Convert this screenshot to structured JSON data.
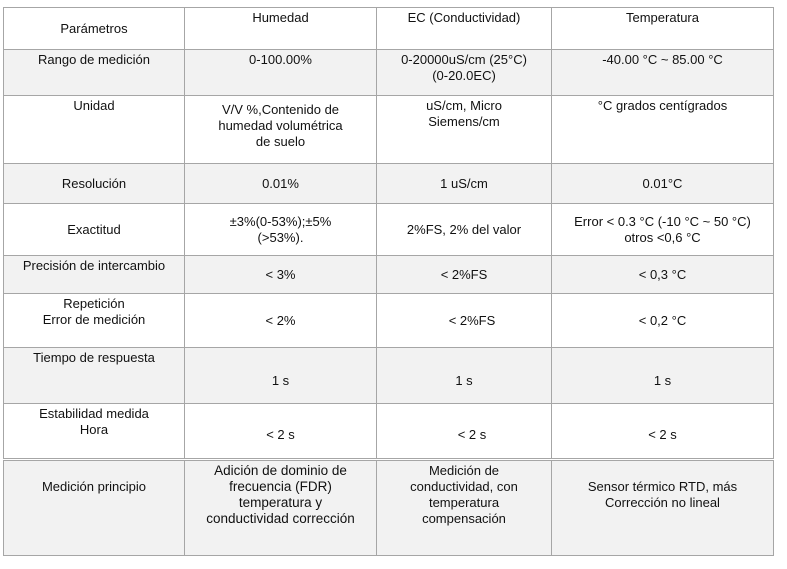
{
  "table": {
    "headers": [
      "Parámetros",
      "Humedad",
      "EC (Conductividad)",
      "Temperatura"
    ],
    "rows": [
      {
        "param": [
          "Rango de medición"
        ],
        "humedad": [
          "0-100.00%"
        ],
        "ec": [
          "0-20000uS/cm (25°C)",
          "(0-20.0EC)"
        ],
        "temperatura": [
          "-40.00 °C ~ 85.00 °C"
        ]
      },
      {
        "param": [
          "Unidad"
        ],
        "humedad": [
          "V/V %,Contenido de",
          "humedad  volumétrica",
          "de suelo"
        ],
        "ec": [
          "uS/cm, Micro",
          "Siemens/cm"
        ],
        "temperatura": [
          "°C grados centígrados"
        ]
      },
      {
        "param": [
          "Resolución"
        ],
        "humedad": [
          "0.01%"
        ],
        "ec": [
          "1 uS/cm"
        ],
        "temperatura": [
          "0.01°C"
        ]
      },
      {
        "param": [
          "Exactitud"
        ],
        "humedad": [
          "±3%(0-53%);±5%",
          "(>53%)."
        ],
        "ec": [
          "2%FS, 2% del valor"
        ],
        "temperatura": [
          "Error < 0.3 °C (-10 °C ~ 50 °C)",
          "otros <0,6 °C"
        ]
      },
      {
        "param": [
          "Precisión de intercambio"
        ],
        "humedad": [
          "< 3%"
        ],
        "ec": [
          "< 2%FS"
        ],
        "temperatura": [
          "< 0,3 °C"
        ]
      },
      {
        "param": [
          "Repetición",
          "Error de medición"
        ],
        "humedad": [
          "< 2%"
        ],
        "ec": [
          "< 2%FS"
        ],
        "temperatura": [
          "< 0,2 °C"
        ]
      },
      {
        "param": [
          "Tiempo de respuesta"
        ],
        "humedad": [
          "1 s"
        ],
        "ec": [
          "1 s"
        ],
        "temperatura": [
          "1 s"
        ]
      },
      {
        "param": [
          "Estabilidad medida",
          "Hora"
        ],
        "humedad": [
          "< 2 s"
        ],
        "ec": [
          "< 2 s"
        ],
        "temperatura": [
          "< 2 s"
        ]
      },
      {
        "param": [
          "Medición principio"
        ],
        "humedad": [
          "Adición de dominio de",
          "frecuencia (FDR)",
          "temperatura y",
          "conductividad corrección"
        ],
        "ec": [
          "Medición de",
          "conductividad, con",
          "temperatura",
          "compensación"
        ],
        "temperatura": [
          "Sensor térmico RTD, más",
          "Corrección no lineal"
        ]
      }
    ]
  }
}
